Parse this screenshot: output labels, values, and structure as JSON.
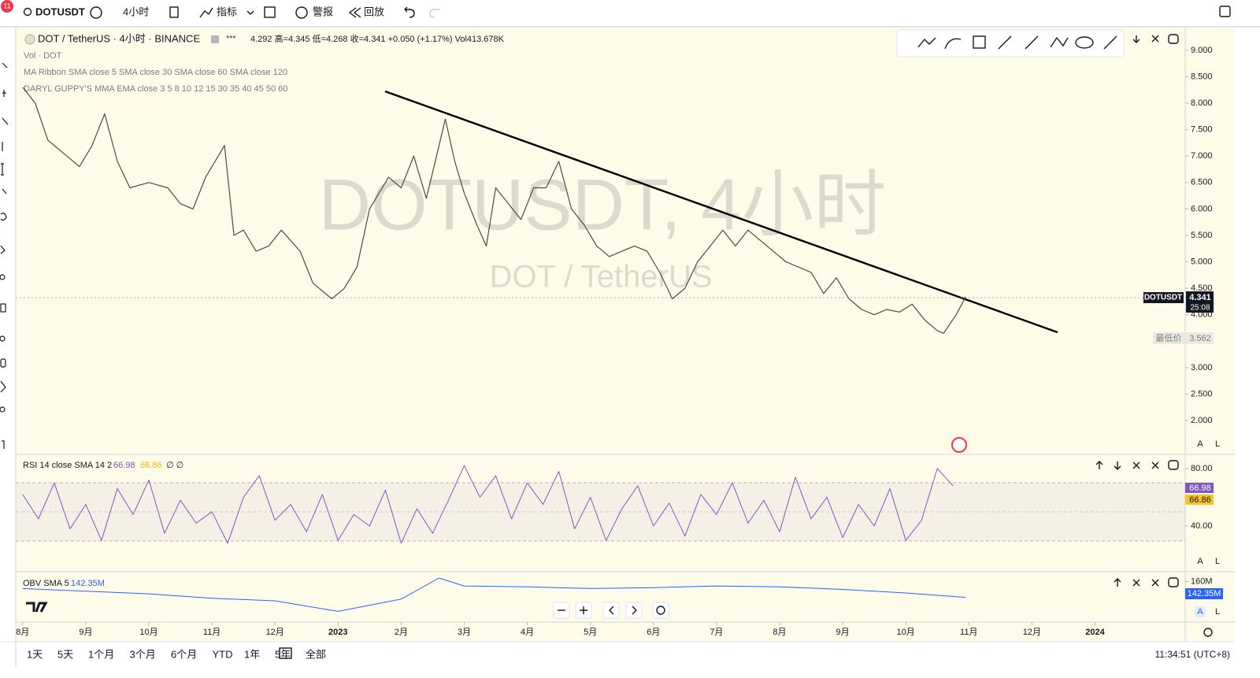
{
  "toolbar": {
    "badge": "11",
    "symbol": "DOTUSDT",
    "interval": "4小时",
    "indicators": "指标",
    "alerts": "警报",
    "replay": "回放"
  },
  "legend": {
    "title": "DOT / TetherUS · 4小时 · BINANCE",
    "ohlc": "4.292 高=4.345 低=4.268 收=4.341 +0.050 (+1.17%) Vol413.678K",
    "indicators": [
      "Vol · DOT",
      "MA Ribbon SMA close 5 SMA close 30 SMA close 60 SMA close 120",
      "DARYL GUPPY'S MMA EMA close 3 5 8 10 12 15 30 35 40 45 50 60"
    ]
  },
  "watermark": {
    "line1": "DOTUSDT, 4小时",
    "line2": "DOT / TetherUS"
  },
  "price_tags": {
    "symbol": "DOTUSDT",
    "last": "4.341",
    "countdown": "25:08",
    "low_label": "最低价",
    "low": "3.562"
  },
  "rsi_legend": {
    "title": "RSI 14 close SMA 14 2",
    "rsi": "66.98",
    "sma": "66.86",
    "tail": "∅ ∅"
  },
  "obv_legend": {
    "title": "OBV SMA 5",
    "value": "142.35M"
  },
  "scale_buttons": [
    "A",
    "L"
  ],
  "range_buttons": [
    "1天",
    "5天",
    "1个月",
    "3个月",
    "6个月",
    "YTD",
    "1年",
    "5年",
    "全部"
  ],
  "clock": "11:34:51 (UTC+8)",
  "chart_data": [
    {
      "type": "line",
      "x": [
        0,
        0.2,
        0.4,
        0.7,
        0.9,
        1.1,
        1.3,
        1.5,
        1.7,
        2.0,
        2.3,
        2.5,
        2.7,
        2.9,
        3.2,
        3.35,
        3.5,
        3.7,
        3.9,
        4.1,
        4.4,
        4.6,
        4.9,
        5.1,
        5.3,
        5.5,
        5.8,
        6.0,
        6.2,
        6.4,
        6.6,
        6.7,
        6.85,
        7.0,
        7.2,
        7.35,
        7.5,
        7.7,
        7.9,
        8.1,
        8.3,
        8.5,
        8.7,
        8.9,
        9.1,
        9.3,
        9.5,
        9.7,
        9.9,
        10.1,
        10.3,
        10.5,
        10.7,
        10.9,
        11.1,
        11.3,
        11.5,
        11.7,
        11.9,
        12.1,
        12.3,
        12.5,
        12.7,
        12.9,
        13.1,
        13.3,
        13.5,
        13.7,
        13.9,
        14.1,
        14.3,
        14.5,
        14.6,
        14.8,
        14.95
      ],
      "series": [
        {
          "name": "DOTUSDT",
          "color": "#4a4a4a",
          "values": [
            8.3,
            8.0,
            7.3,
            7.0,
            6.8,
            7.2,
            7.8,
            6.9,
            6.4,
            6.5,
            6.4,
            6.1,
            6.0,
            6.6,
            7.2,
            5.5,
            5.6,
            5.2,
            5.3,
            5.6,
            5.2,
            4.6,
            4.3,
            4.5,
            4.9,
            6.0,
            6.6,
            6.4,
            7.0,
            6.2,
            7.2,
            7.7,
            6.9,
            6.3,
            5.7,
            5.3,
            6.4,
            6.1,
            5.8,
            6.4,
            6.4,
            6.9,
            6.0,
            5.7,
            5.3,
            5.1,
            5.2,
            5.3,
            5.2,
            4.8,
            4.3,
            4.5,
            5.0,
            5.3,
            5.6,
            5.3,
            5.6,
            5.4,
            5.2,
            5.0,
            4.9,
            4.8,
            4.4,
            4.7,
            4.3,
            4.1,
            4.0,
            4.1,
            4.05,
            4.2,
            3.9,
            3.7,
            3.65,
            4.0,
            4.341
          ]
        }
      ],
      "xlim": [
        -0.11,
        18.43
      ],
      "xticks": [
        {
          "value": 0,
          "label": "8月"
        },
        {
          "value": 1,
          "label": "9月"
        },
        {
          "value": 2,
          "label": "10月"
        },
        {
          "value": 3,
          "label": "11月"
        },
        {
          "value": 4,
          "label": "12月"
        },
        {
          "value": 5,
          "label": "2023"
        },
        {
          "value": 6,
          "label": "2月"
        },
        {
          "value": 7,
          "label": "3月"
        },
        {
          "value": 8,
          "label": "4月"
        },
        {
          "value": 9,
          "label": "5月"
        },
        {
          "value": 10,
          "label": "6月"
        },
        {
          "value": 11,
          "label": "7月"
        },
        {
          "value": 12,
          "label": "8月"
        },
        {
          "value": 13,
          "label": "9月"
        },
        {
          "value": 14,
          "label": "10月"
        },
        {
          "value": 15,
          "label": "11月"
        },
        {
          "value": 16,
          "label": "12月"
        },
        {
          "value": 17,
          "label": "2024"
        }
      ],
      "ylim": [
        1.36,
        9.43
      ],
      "yticks": [
        {
          "value": 2,
          "label": "2.000"
        },
        {
          "value": 2.5,
          "label": "2.500"
        },
        {
          "value": 3,
          "label": "3.000"
        },
        {
          "value": 4,
          "label": "4.000"
        },
        {
          "value": 4.5,
          "label": "4.500"
        },
        {
          "value": 5,
          "label": "5.000"
        },
        {
          "value": 5.5,
          "label": "5.500"
        },
        {
          "value": 6,
          "label": "6.000"
        },
        {
          "value": 6.5,
          "label": "6.500"
        },
        {
          "value": 7,
          "label": "7.000"
        },
        {
          "value": 7.5,
          "label": "7.500"
        },
        {
          "value": 8,
          "label": "8.000"
        },
        {
          "value": 8.5,
          "label": "8.500"
        },
        {
          "value": 9,
          "label": "9.000"
        }
      ]
    },
    {
      "type": "line",
      "x": [
        0,
        0.25,
        0.5,
        0.75,
        1,
        1.25,
        1.5,
        1.75,
        2,
        2.25,
        2.5,
        2.75,
        3,
        3.25,
        3.5,
        3.75,
        4,
        4.25,
        4.5,
        4.75,
        5,
        5.25,
        5.5,
        5.75,
        6,
        6.25,
        6.5,
        6.75,
        7,
        7.25,
        7.5,
        7.75,
        8,
        8.25,
        8.5,
        8.75,
        9,
        9.25,
        9.5,
        9.75,
        10,
        10.25,
        10.5,
        10.75,
        11,
        11.25,
        11.5,
        11.75,
        12,
        12.25,
        12.5,
        12.75,
        13,
        13.25,
        13.5,
        13.75,
        14,
        14.25,
        14.5,
        14.75
      ],
      "series": [
        {
          "name": "RSI",
          "color": "#7e57c2",
          "values": [
            62,
            45,
            70,
            38,
            55,
            30,
            66,
            48,
            72,
            35,
            58,
            42,
            50,
            28,
            60,
            75,
            44,
            55,
            36,
            62,
            30,
            48,
            40,
            65,
            28,
            52,
            35,
            58,
            82,
            60,
            75,
            45,
            70,
            55,
            78,
            38,
            60,
            30,
            52,
            68,
            40,
            56,
            33,
            62,
            48,
            70,
            42,
            58,
            36,
            74,
            45,
            60,
            32,
            55,
            40,
            66,
            30,
            44,
            80,
            68
          ]
        }
      ],
      "ylim": [
        8.8,
        89.3
      ],
      "yticks": [
        {
          "value": 40,
          "label": "40.00"
        },
        {
          "value": 80,
          "label": "80.00"
        }
      ]
    },
    {
      "type": "line",
      "x": [
        0,
        1,
        2,
        3,
        4,
        5,
        6,
        6.6,
        7,
        8,
        9,
        10,
        11,
        12,
        13,
        14,
        14.95
      ],
      "series": [
        {
          "name": "OBV",
          "color": "#2962ff",
          "values": [
            152,
            149,
            146,
            141,
            138,
            126,
            140,
            164,
            155,
            154,
            152,
            153,
            155,
            154,
            151,
            147,
            142
          ]
        }
      ],
      "ylim": [
        113.8,
        170.3
      ],
      "yticks": [
        {
          "value": 160,
          "label": "160M"
        }
      ]
    }
  ]
}
